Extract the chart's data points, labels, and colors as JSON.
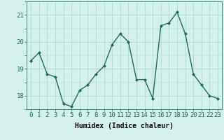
{
  "x": [
    0,
    1,
    2,
    3,
    4,
    5,
    6,
    7,
    8,
    9,
    10,
    11,
    12,
    13,
    14,
    15,
    16,
    17,
    18,
    19,
    20,
    21,
    22,
    23
  ],
  "y": [
    19.3,
    19.6,
    18.8,
    18.7,
    17.7,
    17.6,
    18.2,
    18.4,
    18.8,
    19.1,
    19.9,
    20.3,
    20.0,
    18.6,
    18.6,
    17.9,
    20.6,
    20.7,
    21.1,
    20.3,
    18.8,
    18.4,
    18.0,
    17.9
  ],
  "line_color": "#1e6b5e",
  "marker": "D",
  "marker_size": 2.0,
  "bg_color": "#d4f0ea",
  "grid_color_major": "#aad4cc",
  "xlabel": "Humidex (Indice chaleur)",
  "ylim": [
    17.5,
    21.5
  ],
  "yticks": [
    18,
    19,
    20,
    21
  ],
  "xticks": [
    0,
    1,
    2,
    3,
    4,
    5,
    6,
    7,
    8,
    9,
    10,
    11,
    12,
    13,
    14,
    15,
    16,
    17,
    18,
    19,
    20,
    21,
    22,
    23
  ],
  "xlabel_fontsize": 7,
  "tick_fontsize": 6.5,
  "line_width": 1.0
}
